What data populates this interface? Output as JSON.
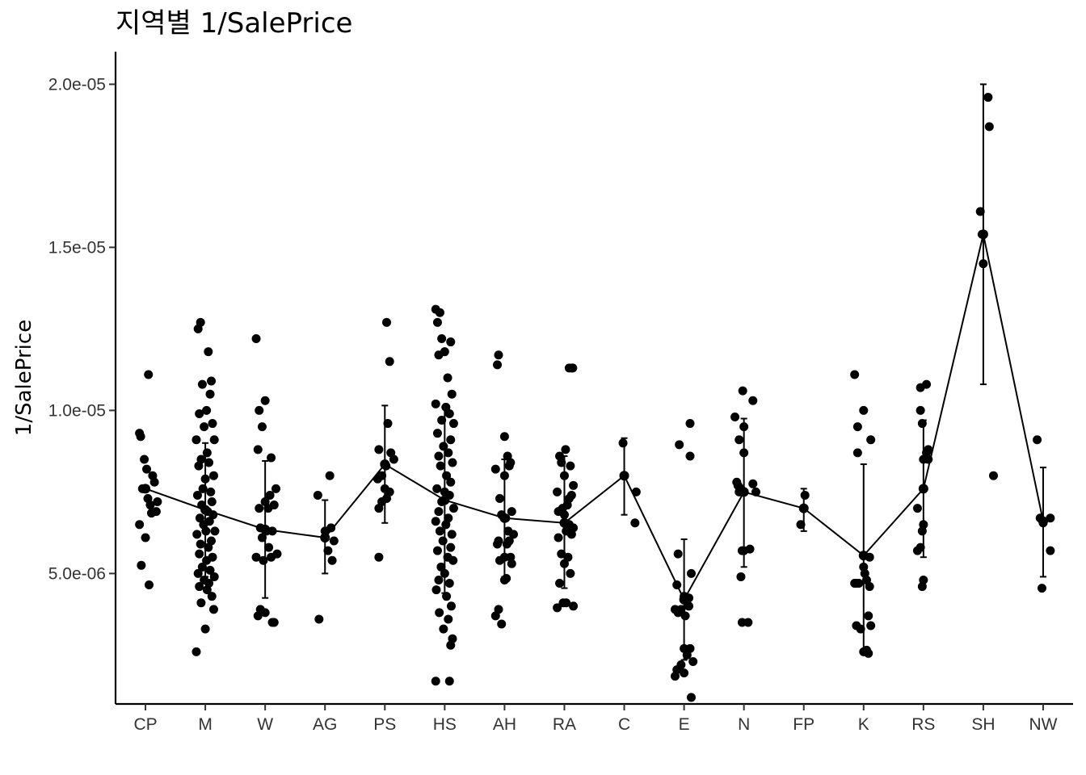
{
  "chart_data": {
    "type": "scatter",
    "title": "지역별 1/SalePrice",
    "xlabel": "",
    "ylabel": "1/SalePrice",
    "ylim": [
      1e-06,
      2.1e-05
    ],
    "y_ticks": [
      {
        "value": 5e-06,
        "label": "5.0e-06"
      },
      {
        "value": 1e-05,
        "label": "1.0e-05"
      },
      {
        "value": 1.5e-05,
        "label": "1.5e-05"
      },
      {
        "value": 2e-05,
        "label": "2.0e-05"
      }
    ],
    "grid": false,
    "categories": [
      "CP",
      "M",
      "W",
      "AG",
      "PS",
      "HS",
      "AH",
      "RA",
      "C",
      "E",
      "N",
      "FP",
      "K",
      "RS",
      "SH",
      "NW"
    ],
    "summary": [
      {
        "category": "CP",
        "mean": 7.6e-06,
        "lower": 7.6e-06,
        "upper": 7.6e-06
      },
      {
        "category": "M",
        "mean": 6.95e-06,
        "lower": 4.9e-06,
        "upper": 9e-06
      },
      {
        "category": "W",
        "mean": 6.35e-06,
        "lower": 4.25e-06,
        "upper": 8.45e-06
      },
      {
        "category": "AG",
        "mean": 6.1e-06,
        "lower": 5e-06,
        "upper": 7.25e-06
      },
      {
        "category": "PS",
        "mean": 8.35e-06,
        "lower": 6.55e-06,
        "upper": 1.015e-05
      },
      {
        "category": "HS",
        "mean": 7.25e-06,
        "lower": 4.4e-06,
        "upper": 1.01e-05
      },
      {
        "category": "AH",
        "mean": 6.7e-06,
        "lower": 4.9e-06,
        "upper": 8.5e-06
      },
      {
        "category": "RA",
        "mean": 6.55e-06,
        "lower": 4.55e-06,
        "upper": 8.6e-06
      },
      {
        "category": "C",
        "mean": 8e-06,
        "lower": 6.8e-06,
        "upper": 9.15e-06
      },
      {
        "category": "E",
        "mean": 4.2e-06,
        "lower": 2.35e-06,
        "upper": 6.05e-06
      },
      {
        "category": "N",
        "mean": 7.5e-06,
        "lower": 5.2e-06,
        "upper": 9.75e-06
      },
      {
        "category": "FP",
        "mean": 7e-06,
        "lower": 6.3e-06,
        "upper": 7.6e-06
      },
      {
        "category": "K",
        "mean": 5.55e-06,
        "lower": 2.65e-06,
        "upper": 8.35e-06
      },
      {
        "category": "RS",
        "mean": 7.6e-06,
        "lower": 5.5e-06,
        "upper": 9.7e-06
      },
      {
        "category": "SH",
        "mean": 1.54e-05,
        "lower": 1.08e-05,
        "upper": 2e-05
      },
      {
        "category": "NW",
        "mean": 6.6e-06,
        "lower": 4.9e-06,
        "upper": 8.25e-06
      }
    ],
    "points": [
      {
        "category": "CP",
        "x": [
          -0.1,
          0.05,
          -0.08,
          0.12,
          0.02,
          -0.02,
          0.15,
          0.2,
          -0.05,
          0.08,
          0.18,
          0.1,
          -0.03,
          0.0,
          0.06,
          0.04,
          -0.07,
          -0.1
        ],
        "y": [
          9.3e-06,
          1.11e-05,
          9.2e-06,
          8e-06,
          8.2e-06,
          8.5e-06,
          7.8e-06,
          7.2e-06,
          7.6e-06,
          7.1e-06,
          6.9e-06,
          6.85e-06,
          7.6e-06,
          6.1e-06,
          4.65e-06,
          7.3e-06,
          5.25e-06,
          6.5e-06
        ]
      },
      {
        "category": "M",
        "x": [
          -0.12,
          -0.08,
          0.05,
          0.1,
          -0.05,
          0.08,
          0.02,
          -0.1,
          0.12,
          -0.02,
          0.15,
          -0.15,
          0.03,
          -0.07,
          0.06,
          -0.11,
          0.14,
          0.0,
          -0.04,
          0.09,
          -0.13,
          0.11,
          -0.06,
          0.04,
          0.13,
          -0.09,
          0.07,
          -0.03,
          0.01,
          0.16,
          -0.14,
          0.1,
          -0.08,
          0.05,
          -0.1,
          0.12,
          0.02,
          -0.05,
          0.08,
          -0.12,
          0.15,
          -0.02,
          0.06,
          -0.1,
          0.03,
          0.11,
          -0.07,
          0.14,
          0.0,
          -0.15
        ],
        "y": [
          1.25e-05,
          1.27e-05,
          1.18e-05,
          1.09e-05,
          1.08e-05,
          1.05e-05,
          1e-05,
          9.9e-06,
          9.6e-06,
          9.5e-06,
          9.1e-06,
          9.1e-06,
          8.7e-06,
          8.5e-06,
          8.4e-06,
          8.3e-06,
          8e-06,
          7.9e-06,
          7.6e-06,
          7.5e-06,
          7.4e-06,
          7.2e-06,
          7.1e-06,
          6.9e-06,
          6.8e-06,
          6.7e-06,
          6.6e-06,
          6.5e-06,
          6.3e-06,
          6.3e-06,
          6.2e-06,
          6e-06,
          5.9e-06,
          5.8e-06,
          5.6e-06,
          5.5e-06,
          5.4e-06,
          5.2e-06,
          5.1e-06,
          5e-06,
          4.9e-06,
          4.8e-06,
          4.7e-06,
          4.6e-06,
          4.5e-06,
          4.3e-06,
          4.1e-06,
          3.9e-06,
          3.3e-06,
          2.6e-06
        ]
      },
      {
        "category": "W",
        "x": [
          -0.15,
          0.0,
          -0.1,
          -0.05,
          0.1,
          -0.12,
          0.08,
          0.18,
          0.0,
          -0.1,
          0.05,
          0.15,
          -0.08,
          0.02,
          -0.05,
          0.12,
          0.2,
          -0.15,
          0.06,
          -0.03,
          0.1,
          -0.08,
          0.0,
          0.12,
          0.15,
          -0.12
        ],
        "y": [
          1.22e-05,
          1.03e-05,
          1e-05,
          9.5e-06,
          8.55e-06,
          8.8e-06,
          7.4e-06,
          7.6e-06,
          7.2e-06,
          7e-06,
          7e-06,
          7.1e-06,
          6.4e-06,
          6.3e-06,
          6.1e-06,
          6.3e-06,
          5.6e-06,
          5.5e-06,
          5.8e-06,
          5.4e-06,
          5.5e-06,
          3.9e-06,
          3.8e-06,
          3.5e-06,
          3.5e-06,
          3.7e-06
        ]
      },
      {
        "category": "AG",
        "x": [
          -0.12,
          0.08,
          0.0,
          0.1,
          -0.1,
          0.15,
          0.05,
          0.12
        ],
        "y": [
          7.4e-06,
          8e-06,
          6.3e-06,
          6.4e-06,
          3.6e-06,
          6e-06,
          5.7e-06,
          5.4e-06
        ]
      },
      {
        "category": "PS",
        "x": [
          0.03,
          0.08,
          0.05,
          0.1,
          -0.1,
          0.02,
          -0.12,
          -0.05,
          0.15,
          -0.1,
          0.08,
          0.0,
          -0.1,
          -0.05,
          0.03
        ],
        "y": [
          1.27e-05,
          1.15e-05,
          9.6e-06,
          8.7e-06,
          8.8e-06,
          8.3e-06,
          7.9e-06,
          8e-06,
          8.5e-06,
          7e-06,
          7.5e-06,
          7.6e-06,
          5.5e-06,
          7.2e-06,
          7.3e-06
        ]
      },
      {
        "category": "HS",
        "x": [
          -0.15,
          -0.08,
          -0.12,
          -0.05,
          0.1,
          0.0,
          -0.1,
          0.05,
          0.12,
          -0.15,
          0.02,
          0.08,
          -0.05,
          0.15,
          -0.12,
          0.1,
          -0.02,
          0.06,
          -0.1,
          0.13,
          -0.07,
          0.03,
          0.1,
          -0.13,
          0.0,
          0.08,
          -0.05,
          0.15,
          -0.1,
          0.06,
          -0.15,
          0.02,
          -0.08,
          0.12,
          -0.03,
          0.1,
          -0.12,
          0.05,
          0.14,
          -0.06,
          0.0,
          -0.1,
          0.08,
          -0.14,
          0.03,
          0.11,
          -0.09,
          0.06,
          -0.02,
          0.13,
          0.1,
          -0.15,
          0.08
        ],
        "y": [
          1.31e-05,
          1.3e-05,
          1.27e-05,
          1.22e-05,
          1.21e-05,
          1.18e-05,
          1.17e-05,
          1.1e-05,
          1.05e-05,
          1.02e-05,
          1.01e-05,
          9.9e-06,
          9.7e-06,
          9.6e-06,
          9.3e-06,
          9.1e-06,
          8.9e-06,
          8.7e-06,
          8.6e-06,
          8.4e-06,
          8.3e-06,
          8e-06,
          7.8e-06,
          7.6e-06,
          7.5e-06,
          7.4e-06,
          7.2e-06,
          7e-06,
          6.9e-06,
          6.7e-06,
          6.6e-06,
          6.5e-06,
          6.3e-06,
          6.2e-06,
          6e-06,
          5.8e-06,
          5.7e-06,
          5.5e-06,
          5.4e-06,
          5.2e-06,
          5e-06,
          4.8e-06,
          4.7e-06,
          4.5e-06,
          4.3e-06,
          4e-06,
          3.8e-06,
          3.6e-06,
          3.3e-06,
          3e-06,
          2.8e-06,
          1.7e-06,
          1.7e-06
        ]
      },
      {
        "category": "AH",
        "x": [
          -0.1,
          0.0,
          -0.12,
          -0.15,
          -0.08,
          0.05,
          0.08,
          0.1,
          0.0,
          -0.05,
          0.12,
          0.02,
          -0.1,
          0.06,
          -0.12,
          0.15,
          0.0,
          -0.08,
          0.1,
          0.04,
          -0.15,
          0.12,
          0.03,
          -0.1,
          -0.05,
          0.08,
          0.0
        ],
        "y": [
          1.17e-05,
          9.2e-06,
          1.14e-05,
          8.2e-06,
          7.3e-06,
          8.6e-06,
          8.3e-06,
          8.4e-06,
          8e-06,
          6.8e-06,
          6.9e-06,
          6.7e-06,
          6e-06,
          6.3e-06,
          5.9e-06,
          6.2e-06,
          5.5e-06,
          5.4e-06,
          5.5e-06,
          5.9e-06,
          3.7e-06,
          5.3e-06,
          4.85e-06,
          3.9e-06,
          3.45e-06,
          6e-06,
          4.8e-06
        ]
      },
      {
        "category": "RA",
        "x": [
          0.08,
          0.12,
          0.14,
          -0.08,
          0.02,
          -0.05,
          0.1,
          0.15,
          0.0,
          -0.12,
          0.08,
          0.12,
          -0.03,
          0.05,
          -0.1,
          0.0,
          0.15,
          0.08,
          -0.1,
          0.03,
          0.12,
          -0.05,
          0.06,
          0.0,
          -0.08,
          0.1,
          0.03,
          0.15,
          -0.12,
          -0.02
        ],
        "y": [
          1.13e-05,
          1.13e-05,
          1.13e-05,
          8.6e-06,
          8.8e-06,
          8.4e-06,
          8.3e-06,
          7.7e-06,
          8e-06,
          7.5e-06,
          7.3e-06,
          7.4e-06,
          7e-06,
          7.1e-06,
          6.9e-06,
          6.8e-06,
          6.4e-06,
          6.5e-06,
          6.1e-06,
          6.3e-06,
          6.2e-06,
          5.6e-06,
          5.5e-06,
          5.3e-06,
          4.7e-06,
          5e-06,
          4.1e-06,
          4e-06,
          3.95e-06,
          4.1e-06
        ]
      },
      {
        "category": "C",
        "x": [
          -0.02,
          0.2,
          0.0,
          0.18
        ],
        "y": [
          9e-06,
          7.5e-06,
          8e-06,
          6.55e-06
        ]
      },
      {
        "category": "E",
        "x": [
          -0.08,
          0.1,
          0.1,
          -0.1,
          0.12,
          -0.12,
          0.0,
          0.05,
          -0.05,
          0.08,
          0.02,
          -0.15,
          -0.1,
          0.0,
          0.05,
          0.1,
          0.15,
          -0.05,
          -0.12,
          0.0,
          -0.15,
          0.12,
          0.08
        ],
        "y": [
          8.95e-06,
          9.6e-06,
          8.6e-06,
          5.6e-06,
          5e-06,
          4.65e-06,
          4.3e-06,
          4.2e-06,
          3.9e-06,
          4e-06,
          3.7e-06,
          3.9e-06,
          3.8e-06,
          2.7e-06,
          2.5e-06,
          2.7e-06,
          2.3e-06,
          2.2e-06,
          2.05e-06,
          1.95e-06,
          1.85e-06,
          1.2e-06,
          4.25e-06
        ]
      },
      {
        "category": "N",
        "x": [
          0.15,
          -0.02,
          -0.08,
          -0.15,
          0.0,
          -0.1,
          0.0,
          -0.12,
          0.15,
          -0.05,
          0.2,
          0.0,
          -0.03,
          0.1,
          -0.05,
          0.07,
          -0.03,
          -0.08
        ],
        "y": [
          1.03e-05,
          1.06e-05,
          9.1e-06,
          9.8e-06,
          9.5e-06,
          7.7e-06,
          8.7e-06,
          7.8e-06,
          7.75e-06,
          7.6e-06,
          7.5e-06,
          5.7e-06,
          5.7e-06,
          5.75e-06,
          4.9e-06,
          3.5e-06,
          3.5e-06,
          7.5e-06
        ]
      },
      {
        "category": "FP",
        "x": [
          0.02,
          -0.05,
          0.0
        ],
        "y": [
          7.4e-06,
          6.5e-06,
          7e-06
        ]
      },
      {
        "category": "K",
        "x": [
          -0.15,
          0.0,
          -0.1,
          -0.1,
          -0.12,
          0.12,
          0.02,
          0.0,
          -0.08,
          -0.12,
          0.1,
          0.05,
          0.08,
          0.12,
          -0.05,
          0.0,
          -0.15,
          0.08,
          0.05,
          0.1
        ],
        "y": [
          1.11e-05,
          1e-05,
          9.5e-06,
          8.7e-06,
          4.7e-06,
          9.1e-06,
          5e-06,
          5.2e-06,
          4.7e-06,
          3.4e-06,
          4.6e-06,
          4.8e-06,
          3.7e-06,
          3.4e-06,
          3.3e-06,
          2.6e-06,
          4.7e-06,
          2.55e-06,
          2.65e-06,
          5.5e-06
        ]
      },
      {
        "category": "RS",
        "x": [
          -0.05,
          -0.05,
          -0.02,
          0.05,
          0.08,
          0.0,
          -0.1,
          0.05,
          -0.02,
          0.0,
          -0.1,
          -0.05,
          0.0,
          -0.02,
          0.0,
          0.08
        ],
        "y": [
          1.07e-05,
          1e-05,
          9.6e-06,
          1.08e-05,
          8.8e-06,
          8.5e-06,
          7e-06,
          8.7e-06,
          6.3e-06,
          6.5e-06,
          5.7e-06,
          5.8e-06,
          4.8e-06,
          4.6e-06,
          7.6e-06,
          8.5e-06
        ]
      },
      {
        "category": "SH",
        "x": [
          0.08,
          0.1,
          -0.05,
          0.0,
          0.17,
          -0.02
        ],
        "y": [
          1.96e-05,
          1.87e-05,
          1.61e-05,
          1.45e-05,
          8e-06,
          1.54e-05
        ]
      },
      {
        "category": "NW",
        "x": [
          -0.1,
          -0.05,
          0.0,
          0.12,
          0.12,
          -0.02
        ],
        "y": [
          9.1e-06,
          6.7e-06,
          6.55e-06,
          6.7e-06,
          5.7e-06,
          4.55e-06
        ]
      }
    ]
  }
}
